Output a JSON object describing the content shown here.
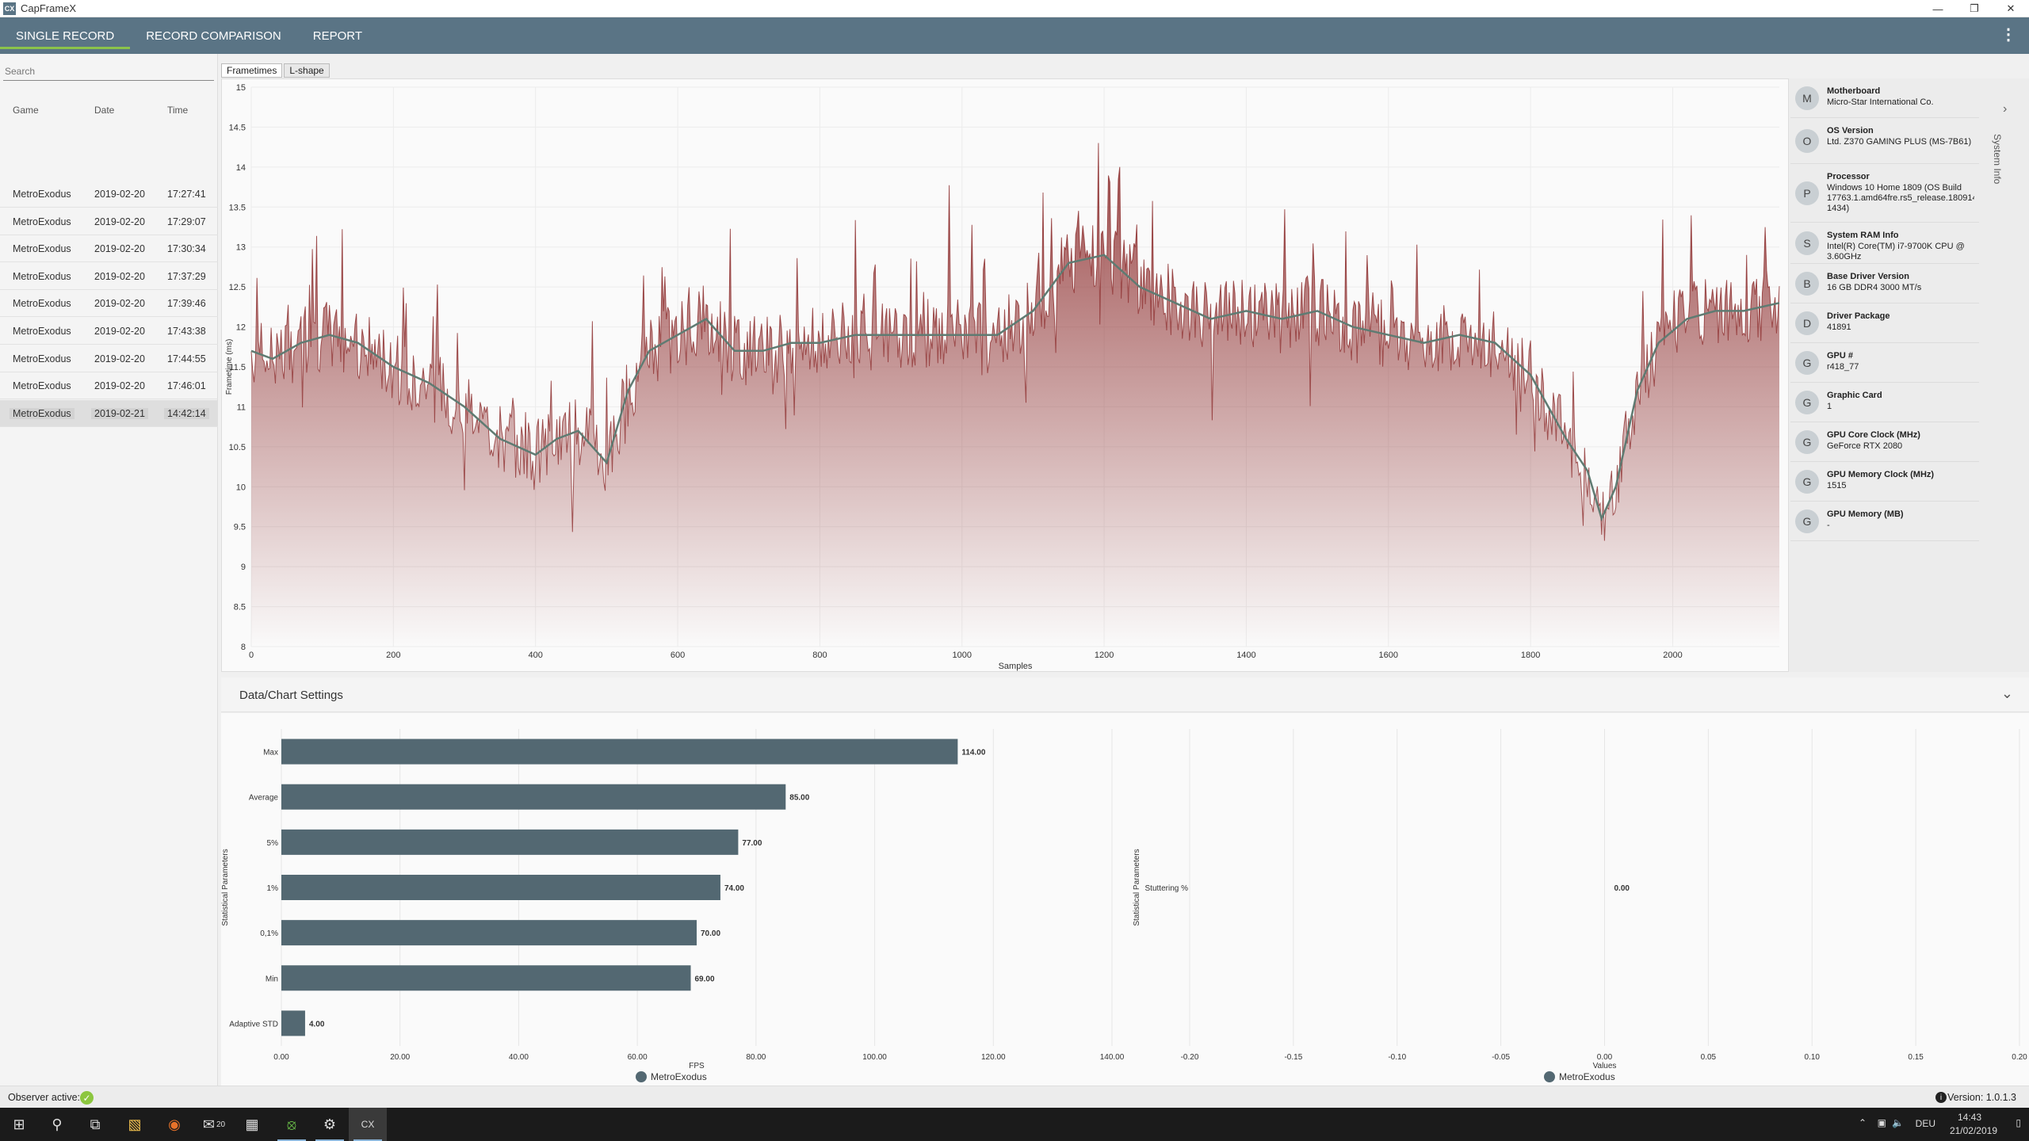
{
  "window": {
    "title": "CapFrameX",
    "icon": "CX"
  },
  "menu": {
    "tabs": [
      "SINGLE RECORD",
      "RECORD COMPARISON",
      "REPORT"
    ]
  },
  "sidebar": {
    "search_placeholder": "Search",
    "columns": [
      "Game",
      "Date",
      "Time"
    ],
    "rows": [
      {
        "game": "MetroExodus",
        "date": "2019-02-20",
        "time": "17:27:41"
      },
      {
        "game": "MetroExodus",
        "date": "2019-02-20",
        "time": "17:29:07"
      },
      {
        "game": "MetroExodus",
        "date": "2019-02-20",
        "time": "17:30:34"
      },
      {
        "game": "MetroExodus",
        "date": "2019-02-20",
        "time": "17:37:29"
      },
      {
        "game": "MetroExodus",
        "date": "2019-02-20",
        "time": "17:39:46"
      },
      {
        "game": "MetroExodus",
        "date": "2019-02-20",
        "time": "17:43:38"
      },
      {
        "game": "MetroExodus",
        "date": "2019-02-20",
        "time": "17:44:55"
      },
      {
        "game": "MetroExodus",
        "date": "2019-02-20",
        "time": "17:46:01"
      },
      {
        "game": "MetroExodus",
        "date": "2019-02-21",
        "time": "14:42:14"
      }
    ]
  },
  "chart_tabs": [
    "Frametimes",
    "L-shape"
  ],
  "system_info": {
    "side_label": "System Info",
    "items": [
      {
        "initial": "M",
        "title": "Motherboard",
        "value": "Micro-Star International Co."
      },
      {
        "initial": "O",
        "title": "OS Version",
        "value": "Ltd. Z370 GAMING PLUS (MS-7B61)"
      },
      {
        "initial": "P",
        "title": "Processor",
        "value": "Windows 10 Home 1809 (OS Build 17763.1.amd64fre.rs5_release.180914-1434)"
      },
      {
        "initial": "S",
        "title": "System RAM Info",
        "value": "Intel(R) Core(TM) i7-9700K CPU @ 3.60GHz"
      },
      {
        "initial": "B",
        "title": "Base Driver Version",
        "value": "16 GB DDR4 3000 MT/s"
      },
      {
        "initial": "D",
        "title": "Driver Package",
        "value": "41891"
      },
      {
        "initial": "G",
        "title": "GPU #",
        "value": "r418_77"
      },
      {
        "initial": "G",
        "title": "Graphic Card",
        "value": "1"
      },
      {
        "initial": "G",
        "title": "GPU Core Clock (MHz)",
        "value": "GeForce RTX 2080"
      },
      {
        "initial": "G",
        "title": "GPU Memory Clock (MHz)",
        "value": "1515"
      },
      {
        "initial": "G",
        "title": "GPU Memory (MB)",
        "value": "-"
      }
    ]
  },
  "settings": {
    "label": "Data/Chart Settings"
  },
  "chart_data": [
    {
      "type": "line",
      "ylabel": "Frametime (ms)",
      "xlabel": "Samples",
      "xlim": [
        0,
        2150
      ],
      "ylim": [
        8,
        15
      ],
      "xticks": [
        0,
        200,
        400,
        600,
        800,
        1000,
        1200,
        1400,
        1600,
        1800,
        2000
      ],
      "yticks": [
        8,
        8.5,
        9,
        9.5,
        10,
        10.5,
        11,
        11.5,
        12,
        12.5,
        13,
        13.5,
        14,
        14.5,
        15
      ],
      "series": [
        {
          "role": "frametime",
          "color": "#8b2a2a"
        },
        {
          "role": "moving-average",
          "color": "#5f7b72"
        }
      ],
      "moving_average": {
        "x": [
          0,
          30,
          70,
          110,
          150,
          200,
          250,
          300,
          350,
          400,
          430,
          460,
          500,
          530,
          560,
          600,
          640,
          680,
          720,
          760,
          800,
          850,
          900,
          950,
          1000,
          1050,
          1100,
          1150,
          1200,
          1250,
          1300,
          1350,
          1400,
          1450,
          1500,
          1550,
          1600,
          1650,
          1700,
          1750,
          1800,
          1850,
          1880,
          1900,
          1920,
          1950,
          1980,
          2020,
          2060,
          2100,
          2150
        ],
        "y": [
          11.7,
          11.6,
          11.8,
          11.9,
          11.8,
          11.5,
          11.3,
          11.0,
          10.6,
          10.4,
          10.6,
          10.7,
          10.3,
          11.2,
          11.7,
          11.9,
          12.1,
          11.7,
          11.7,
          11.8,
          11.8,
          11.9,
          11.9,
          11.9,
          11.9,
          11.9,
          12.2,
          12.8,
          12.9,
          12.5,
          12.3,
          12.1,
          12.2,
          12.1,
          12.2,
          12.0,
          11.9,
          11.8,
          11.9,
          11.8,
          11.4,
          10.6,
          10.2,
          9.6,
          10.0,
          11.2,
          11.8,
          12.1,
          12.2,
          12.2,
          12.3
        ]
      },
      "frametime_spike_max": 14.5,
      "frametime_dip_min": 8.7
    },
    {
      "type": "bar",
      "orientation": "horizontal",
      "categories": [
        "Max",
        "Average",
        "5%",
        "1%",
        "0,1%",
        "Min",
        "Adaptive STD"
      ],
      "values": [
        114.0,
        85.0,
        77.0,
        74.0,
        70.0,
        69.0,
        4.0
      ],
      "value_labels": [
        "114.00",
        "85.00",
        "77.00",
        "74.00",
        "70.00",
        "69.00",
        "4.00"
      ],
      "xlabel": "FPS",
      "ylabel": "Statistical Parameters",
      "xlim": [
        0,
        140
      ],
      "xticks": [
        "0.00",
        "20.00",
        "40.00",
        "60.00",
        "80.00",
        "100.00",
        "120.00",
        "140.00"
      ],
      "bar_color": "#536872",
      "legend": "MetroExodus"
    },
    {
      "type": "bar",
      "orientation": "horizontal",
      "categories": [
        "Stuttering %"
      ],
      "values": [
        0.0
      ],
      "value_labels": [
        "0.00"
      ],
      "xlabel": "Values",
      "ylabel": "Statistical Parameters",
      "xlim": [
        -0.2,
        0.2
      ],
      "xticks": [
        "-0.20",
        "-0.15",
        "-0.10",
        "-0.05",
        "0.00",
        "0.05",
        "0.10",
        "0.15",
        "0.20"
      ],
      "legend": "MetroExodus"
    }
  ],
  "status": {
    "observer": "Observer active:",
    "version": "Version: 1.0.1.3"
  },
  "taskbar": {
    "time": "14:43",
    "date": "21/02/2019",
    "lang": "DEU",
    "mail_badge": "20",
    "active_app": "CX"
  }
}
